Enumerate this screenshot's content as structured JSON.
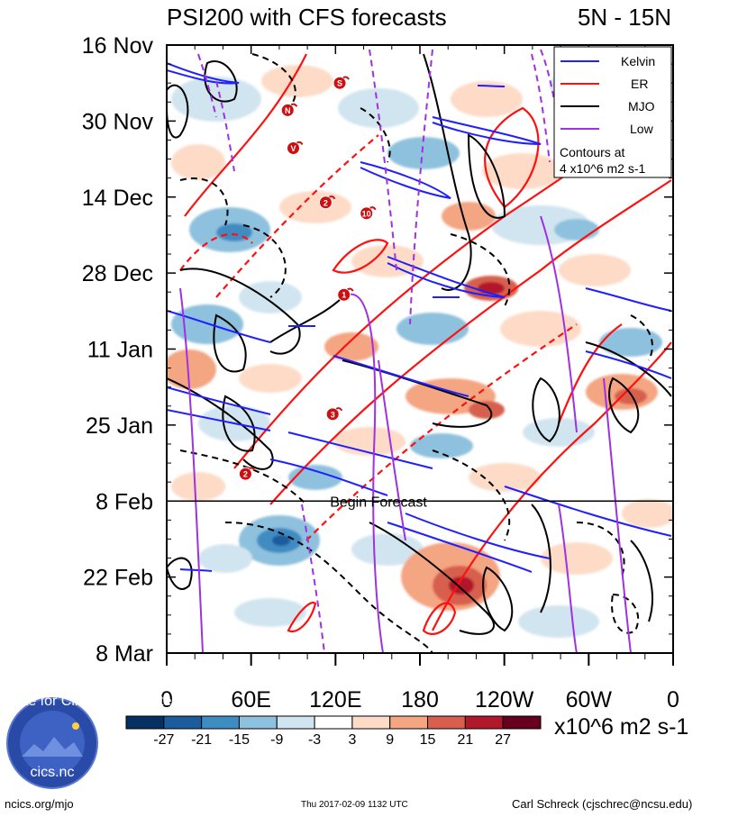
{
  "chart_data": {
    "type": "heatmap",
    "title": "PSI200 with CFS forecasts",
    "region": "5N - 15N",
    "x_tick_labels": [
      "0",
      "60E",
      "120E",
      "180",
      "120W",
      "60W",
      "0"
    ],
    "y_tick_labels": [
      "16 Nov",
      "30 Nov",
      "14 Dec",
      "28 Dec",
      "11 Jan",
      "25 Jan",
      "8 Feb",
      "22 Feb",
      "8 Mar"
    ],
    "x_range_deg_east": [
      0,
      360
    ],
    "y_range_days": [
      0,
      112
    ],
    "forecast_line_day": 84,
    "forecast_label": "Begin Forecast",
    "colorbar": {
      "levels": [
        -27,
        -21,
        -15,
        -9,
        -3,
        3,
        9,
        15,
        21,
        27
      ],
      "colors": [
        "#053061",
        "#1c5c9c",
        "#3f8cc2",
        "#8ec1dd",
        "#d1e5f0",
        "#ffffff",
        "#fddbc7",
        "#f4a582",
        "#d6604d",
        "#b2182b",
        "#67001f"
      ],
      "units": "x10^6 m2 s-1"
    },
    "legend": [
      {
        "name": "Kelvin",
        "color": "#1f1fff"
      },
      {
        "name": "ER",
        "color": "#ff1010"
      },
      {
        "name": "MJO",
        "color": "#000000"
      },
      {
        "name": "Low",
        "color": "#a030e0"
      }
    ],
    "legend_note_line1": "Contours at",
    "legend_note_line2": "4 x10^6 m2 s-1",
    "storm_markers": [
      {
        "label": "S",
        "lon": 123,
        "day": 7
      },
      {
        "label": "N",
        "lon": 86,
        "day": 12
      },
      {
        "label": "V",
        "lon": 90,
        "day": 19
      },
      {
        "label": "2",
        "lon": 113,
        "day": 29
      },
      {
        "label": "10",
        "lon": 142,
        "day": 31
      },
      {
        "label": "1",
        "lon": 126,
        "day": 46
      },
      {
        "label": "3",
        "lon": 118,
        "day": 68
      },
      {
        "label": "2",
        "lon": 56,
        "day": 79
      }
    ]
  },
  "footer": {
    "left": "ncics.org/mjo",
    "center": "Thu 2017-02-09 1132 UTC",
    "right": "Carl Schreck (cjschrec@ncsu.edu)",
    "logo_text": "cics.nc",
    "logo_ring_text": "Cooperative Institute for Climate and Satellites"
  }
}
